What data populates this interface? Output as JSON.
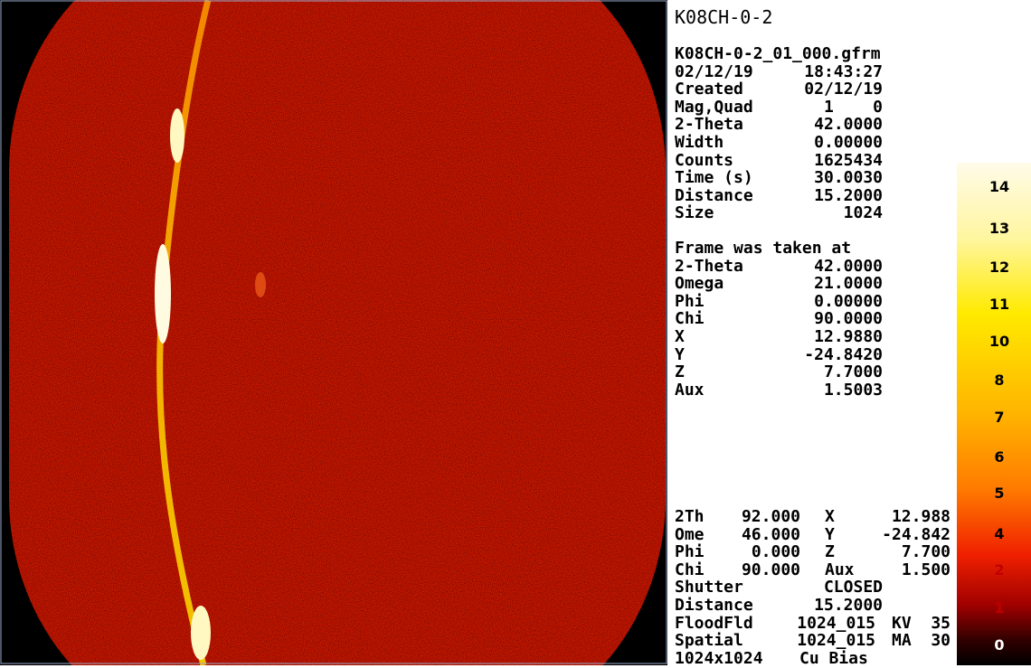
{
  "header": {
    "title": "K08CH-0-2",
    "filename": "K08CH-0-2_01_000.gfrm"
  },
  "info": [
    [
      "02/12/19",
      "18:43:27"
    ],
    [
      "Created",
      "02/12/19"
    ],
    [
      "Mag,Quad",
      "1    0"
    ],
    [
      "2-Theta",
      "42.0000"
    ],
    [
      "Width",
      "0.00000"
    ],
    [
      "Counts",
      "1625434"
    ],
    [
      "Time (s)",
      "30.0030"
    ],
    [
      "Distance",
      "15.2000"
    ],
    [
      "Size",
      "1024"
    ]
  ],
  "frame": {
    "heading": "Frame was taken at",
    "rows": [
      [
        "2-Theta",
        "42.0000"
      ],
      [
        "Omega",
        "21.0000"
      ],
      [
        "Phi",
        "0.00000"
      ],
      [
        "Chi",
        "90.0000"
      ],
      [
        "X",
        "12.9880"
      ],
      [
        "Y",
        "-24.8420"
      ],
      [
        "Z",
        "7.7000"
      ],
      [
        "Aux",
        "1.5003"
      ]
    ]
  },
  "status": [
    [
      "2Th",
      "92.000",
      "X",
      "12.988"
    ],
    [
      "Ome",
      "46.000",
      "Y",
      "-24.842"
    ],
    [
      "Phi",
      "0.000",
      "Z",
      "7.700"
    ],
    [
      "Chi",
      "90.000",
      "Aux",
      "1.500"
    ],
    [
      "Shutter",
      "CLOSED"
    ],
    [
      "Distance",
      "15.2000"
    ],
    [
      "FloodFld",
      "1024_015",
      "KV",
      "35"
    ],
    [
      "Spatial",
      "1024_015",
      "MA",
      "30"
    ],
    [
      "1024x1024",
      "Cu Bias"
    ]
  ],
  "colorbar": {
    "labels": [
      "14",
      "13",
      "12",
      "11",
      "10",
      "8",
      "7",
      "6",
      "5",
      "4",
      "2",
      "1",
      "0"
    ]
  }
}
